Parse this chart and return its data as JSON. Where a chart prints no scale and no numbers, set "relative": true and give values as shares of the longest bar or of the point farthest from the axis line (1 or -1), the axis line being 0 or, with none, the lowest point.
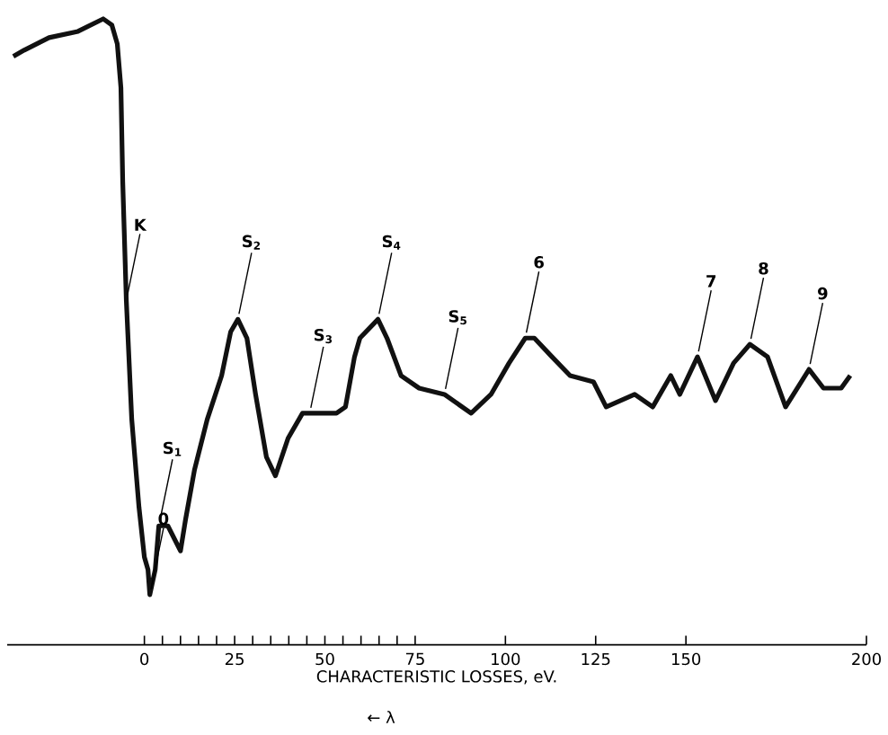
{
  "chart_data": {
    "type": "line",
    "relative": true,
    "color": "#111111",
    "xlabel": "CHARACTERISTIC LOSSES, eV.",
    "xlim": [
      -38,
      200
    ],
    "xticks": [
      0,
      {
        "value": 5,
        "label": null
      },
      {
        "value": 10,
        "label": null
      },
      {
        "value": 15,
        "label": null
      },
      {
        "value": 20,
        "label": null
      },
      25,
      {
        "value": 30,
        "label": null
      },
      {
        "value": 35,
        "label": null
      },
      {
        "value": 40,
        "label": null
      },
      {
        "value": 45,
        "label": null
      },
      50,
      {
        "value": 55,
        "label": null
      },
      {
        "value": 60,
        "label": null
      },
      {
        "value": 65,
        "label": null
      },
      {
        "value": 70,
        "label": null
      },
      75,
      100,
      125,
      150,
      200
    ],
    "x": [
      -36.3,
      -33.3,
      -26.4,
      -18.4,
      -11.4,
      -9.0,
      -7.5,
      -6.5,
      -6.0,
      -5.0,
      -3.5,
      -1.5,
      0,
      1.0,
      1.5,
      3.0,
      4.0,
      6.5,
      10.0,
      11.4,
      13.9,
      17.4,
      21.4,
      23.9,
      25.9,
      28.4,
      30.8,
      33.8,
      36.3,
      39.8,
      43.8,
      45.8,
      49.8,
      53.2,
      55.7,
      58.2,
      59.7,
      64.7,
      67.2,
      71.1,
      76.1,
      83.1,
      90.5,
      96.0,
      101.0,
      105.5,
      108.0,
      112.9,
      117.9,
      124.4,
      127.9,
      135.8,
      140.8,
      145.8,
      148.3,
      153.2,
      158.2,
      163.2,
      167.7,
      172.6,
      177.6,
      184.1,
      188.1,
      193.0,
      195.5
    ],
    "values": [
      0.94,
      0.95,
      0.97,
      0.98,
      1.0,
      0.99,
      0.96,
      0.89,
      0.74,
      0.55,
      0.36,
      0.22,
      0.14,
      0.12,
      0.08,
      0.12,
      0.19,
      0.19,
      0.15,
      0.2,
      0.28,
      0.36,
      0.43,
      0.5,
      0.52,
      0.49,
      0.4,
      0.3,
      0.27,
      0.33,
      0.37,
      0.37,
      0.37,
      0.37,
      0.38,
      0.46,
      0.49,
      0.52,
      0.49,
      0.43,
      0.41,
      0.4,
      0.37,
      0.4,
      0.45,
      0.49,
      0.49,
      0.46,
      0.43,
      0.42,
      0.38,
      0.4,
      0.38,
      0.43,
      0.4,
      0.46,
      0.39,
      0.45,
      0.48,
      0.46,
      0.38,
      0.44,
      0.41,
      0.41,
      0.43
    ],
    "annotations": [
      {
        "text": "K",
        "x": -5.0,
        "y": 0.55
      },
      {
        "text": "0",
        "x": 1.5,
        "y": 0.08
      },
      {
        "text": "S$_{1}$",
        "x": 4.0,
        "y": 0.19
      },
      {
        "text": "S$_{2}$",
        "x": 25.9,
        "y": 0.52
      },
      {
        "text": "S$_{3}$",
        "x": 45.8,
        "y": 0.37
      },
      {
        "text": "S$_{4}$",
        "x": 64.7,
        "y": 0.52
      },
      {
        "text": "S$_{5}$",
        "x": 83.1,
        "y": 0.4
      },
      {
        "text": "6",
        "x": 105.5,
        "y": 0.49
      },
      {
        "text": "7",
        "x": 153.2,
        "y": 0.46
      },
      {
        "text": "8",
        "x": 167.7,
        "y": 0.48
      },
      {
        "text": "9",
        "x": 184.1,
        "y": 0.44
      },
      "← λ"
    ]
  }
}
